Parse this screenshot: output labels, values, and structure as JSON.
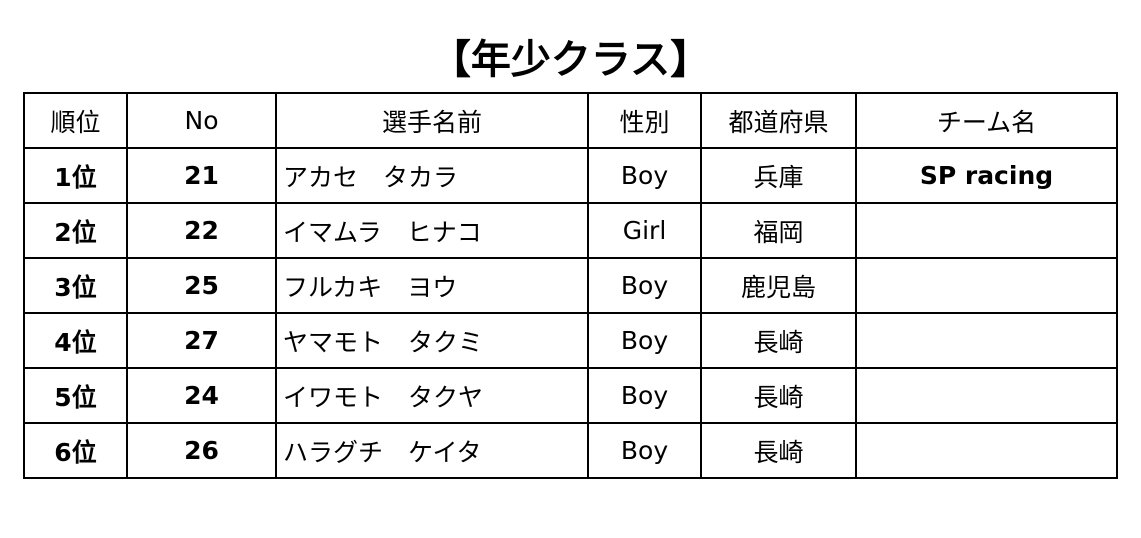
{
  "title": "【年少クラス】",
  "headers": [
    "順位",
    "No",
    "選手名前",
    "性別",
    "都道府県",
    "チーム名"
  ],
  "rows": [
    {
      "rank": "1位",
      "no": "21",
      "name": "アカセ　タカラ",
      "gender": "Boy",
      "pref": "兵庫",
      "team": "SP racing"
    },
    {
      "rank": "2位",
      "no": "22",
      "name": "イマムラ　ヒナコ",
      "gender": "Girl",
      "pref": "福岡",
      "team": ""
    },
    {
      "rank": "3位",
      "no": "25",
      "name": "フルカキ　ヨウ",
      "gender": "Boy",
      "pref": "鹿児島",
      "team": ""
    },
    {
      "rank": "4位",
      "no": "27",
      "name": "ヤマモト　タクミ",
      "gender": "Boy",
      "pref": "長崎",
      "team": ""
    },
    {
      "rank": "5位",
      "no": "24",
      "name": "イワモト　タクヤ",
      "gender": "Boy",
      "pref": "長崎",
      "team": ""
    },
    {
      "rank": "6位",
      "no": "26",
      "name": "ハラグチ　ケイタ",
      "gender": "Boy",
      "pref": "長崎",
      "team": ""
    }
  ]
}
